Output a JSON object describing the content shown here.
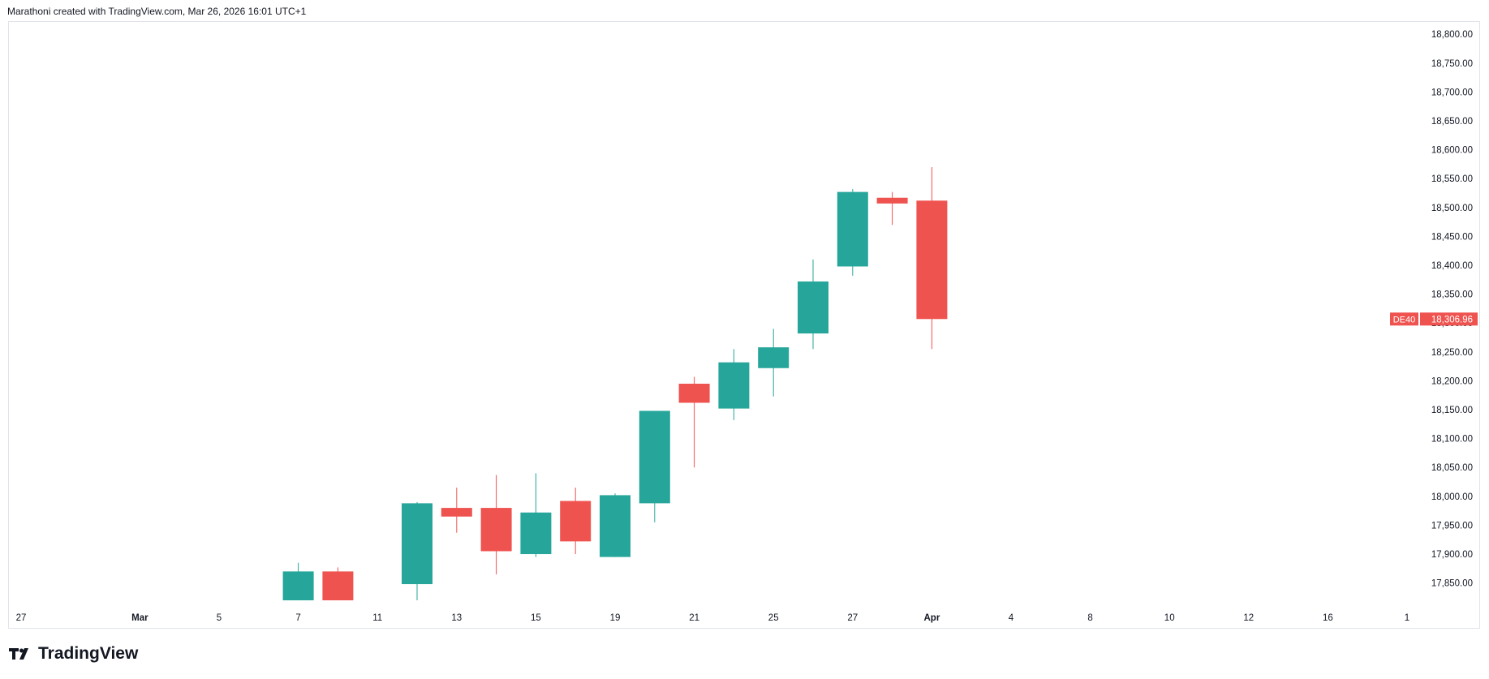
{
  "header": {
    "attribution": "Marathoni created with TradingView.com, Mar 26, 2026 16:01 UTC+1"
  },
  "footer": {
    "logo_text": "TradingView"
  },
  "colors": {
    "up": "#26a69a",
    "down": "#ef5350",
    "grid_border": "#e0e3eb",
    "axis_text": "#131722"
  },
  "chart_data": {
    "type": "candlestick",
    "symbol_label": "DE40",
    "last_price_label": "18,306.96",
    "last_price": 18306.96,
    "ylim": [
      17820,
      18820
    ],
    "y_ticks": [
      17850,
      17900,
      17950,
      18000,
      18050,
      18100,
      18150,
      18200,
      18250,
      18300,
      18350,
      18400,
      18450,
      18500,
      18550,
      18600,
      18650,
      18700,
      18750,
      18800
    ],
    "y_tick_labels": [
      "17,850.00",
      "17,900.00",
      "17,950.00",
      "18,000.00",
      "18,050.00",
      "18,100.00",
      "18,150.00",
      "18,200.00",
      "18,250.00",
      "18,300.00",
      "18,350.00",
      "18,400.00",
      "18,450.00",
      "18,500.00",
      "18,550.00",
      "18,600.00",
      "18,650.00",
      "18,700.00",
      "18,750.00",
      "18,800.00"
    ],
    "x_tick_labels": [
      {
        "label": "27",
        "bold": false
      },
      {
        "label": "Mar",
        "bold": true
      },
      {
        "label": "5",
        "bold": false
      },
      {
        "label": "7",
        "bold": false
      },
      {
        "label": "11",
        "bold": false
      },
      {
        "label": "13",
        "bold": false
      },
      {
        "label": "15",
        "bold": false
      },
      {
        "label": "19",
        "bold": false
      },
      {
        "label": "21",
        "bold": false
      },
      {
        "label": "25",
        "bold": false
      },
      {
        "label": "27",
        "bold": false
      },
      {
        "label": "Apr",
        "bold": true
      },
      {
        "label": "4",
        "bold": false
      },
      {
        "label": "8",
        "bold": false
      },
      {
        "label": "10",
        "bold": false
      },
      {
        "label": "12",
        "bold": false
      },
      {
        "label": "16",
        "bold": false
      },
      {
        "label": "1",
        "bold": false
      }
    ],
    "x_tick_slots": [
      0,
      3,
      5,
      7,
      9,
      11,
      13,
      15,
      17,
      19,
      21,
      23,
      25,
      27,
      29,
      31,
      33,
      35
    ],
    "candles": [
      {
        "slot": 7,
        "open": 17820,
        "high": 17885,
        "low": 17820,
        "close": 17870
      },
      {
        "slot": 8,
        "open": 17870,
        "high": 17877,
        "low": 17820,
        "close": 17820
      },
      {
        "slot": 10,
        "open": 17848,
        "high": 17990,
        "low": 17820,
        "close": 17988
      },
      {
        "slot": 11,
        "open": 17980,
        "high": 18015,
        "low": 17937,
        "close": 17965
      },
      {
        "slot": 12,
        "open": 17980,
        "high": 18037,
        "low": 17865,
        "close": 17905
      },
      {
        "slot": 13,
        "open": 17900,
        "high": 18040,
        "low": 17895,
        "close": 17972
      },
      {
        "slot": 14,
        "open": 17992,
        "high": 18015,
        "low": 17900,
        "close": 17922
      },
      {
        "slot": 15,
        "open": 17895,
        "high": 18005,
        "low": 17895,
        "close": 18002
      },
      {
        "slot": 16,
        "open": 17988,
        "high": 18148,
        "low": 17955,
        "close": 18148
      },
      {
        "slot": 17,
        "open": 18195,
        "high": 18207,
        "low": 18050,
        "close": 18162
      },
      {
        "slot": 18,
        "open": 18152,
        "high": 18255,
        "low": 18132,
        "close": 18232
      },
      {
        "slot": 19,
        "open": 18222,
        "high": 18290,
        "low": 18173,
        "close": 18258
      },
      {
        "slot": 20,
        "open": 18282,
        "high": 18410,
        "low": 18255,
        "close": 18372
      },
      {
        "slot": 21,
        "open": 18398,
        "high": 18532,
        "low": 18382,
        "close": 18527
      },
      {
        "slot": 22,
        "open": 18517,
        "high": 18527,
        "low": 18470,
        "close": 18507
      },
      {
        "slot": 23,
        "open": 18512,
        "high": 18570,
        "low": 18255,
        "close": 18306.96
      }
    ]
  }
}
